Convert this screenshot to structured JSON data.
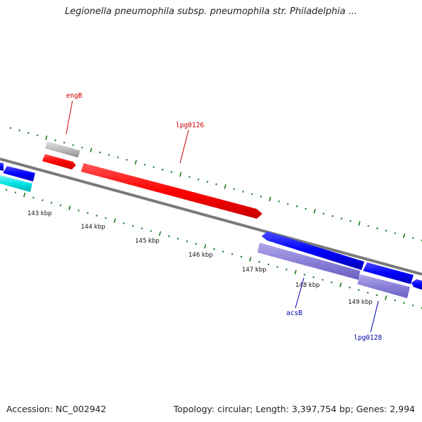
{
  "title": "Legionella pneumophila subsp. pneumophila str. Philadelphia ...",
  "footer": {
    "accession": "Accession: NC_002942",
    "summary": "Topology: circular; Length: 3,397,754 bp; Genes: 2,994"
  },
  "colors": {
    "backbone": "#808080",
    "forward_gene": "#ff0000",
    "reverse_gene": "#0000ff",
    "rna_gene": "#9c8fd8",
    "misc_feature": "#00e5e5",
    "pseudo_gene": "#bdbdbd",
    "tick_marks": "#1a7a1a",
    "forward_label": "#cc0000",
    "reverse_label": "#0000aa"
  },
  "ruler": {
    "scale_labels": [
      "143 kbp",
      "144 kbp",
      "145 kbp",
      "146 kbp",
      "147 kbp",
      "148 kbp",
      "149 kbp"
    ]
  },
  "gene_labels": [
    {
      "text": "engB",
      "strand": "forward"
    },
    {
      "text": "lpg0126",
      "strand": "forward"
    },
    {
      "text": "acsB",
      "strand": "reverse"
    },
    {
      "text": "lpg0128",
      "strand": "reverse"
    }
  ]
}
